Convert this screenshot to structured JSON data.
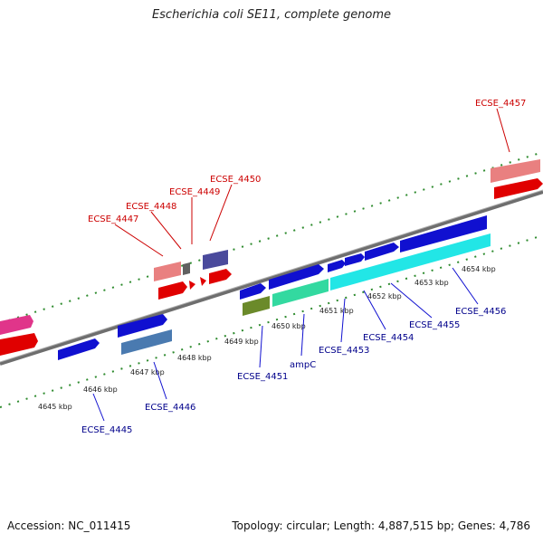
{
  "title": "Escherichia coli SE11, complete genome",
  "footer": {
    "accession": "Accession: NC_011415",
    "summary": "Topology: circular; Length: 4,887,515 bp; Genes: 4,786"
  },
  "colors": {
    "top_label": "#cc0000",
    "bottom_label": "#00008b",
    "backbone": "#7a7a7a",
    "ticks": "#2e8b2e"
  },
  "scale_labels": [
    "4645 kbp",
    "4646 kbp",
    "4647 kbp",
    "4648 kbp",
    "4649 kbp",
    "4650 kbp",
    "4651 kbp",
    "4652 kbp",
    "4653 kbp",
    "4654 kbp"
  ],
  "top_gene_labels": [
    "ECSE_4447",
    "ECSE_4448",
    "ECSE_4449",
    "ECSE_4450",
    "ECSE_4457"
  ],
  "bottom_gene_labels": [
    "ECSE_4445",
    "ECSE_4446",
    "ECSE_4451",
    "ampC",
    "ECSE_4453",
    "ECSE_4454",
    "ECSE_4455",
    "ECSE_4456"
  ]
}
